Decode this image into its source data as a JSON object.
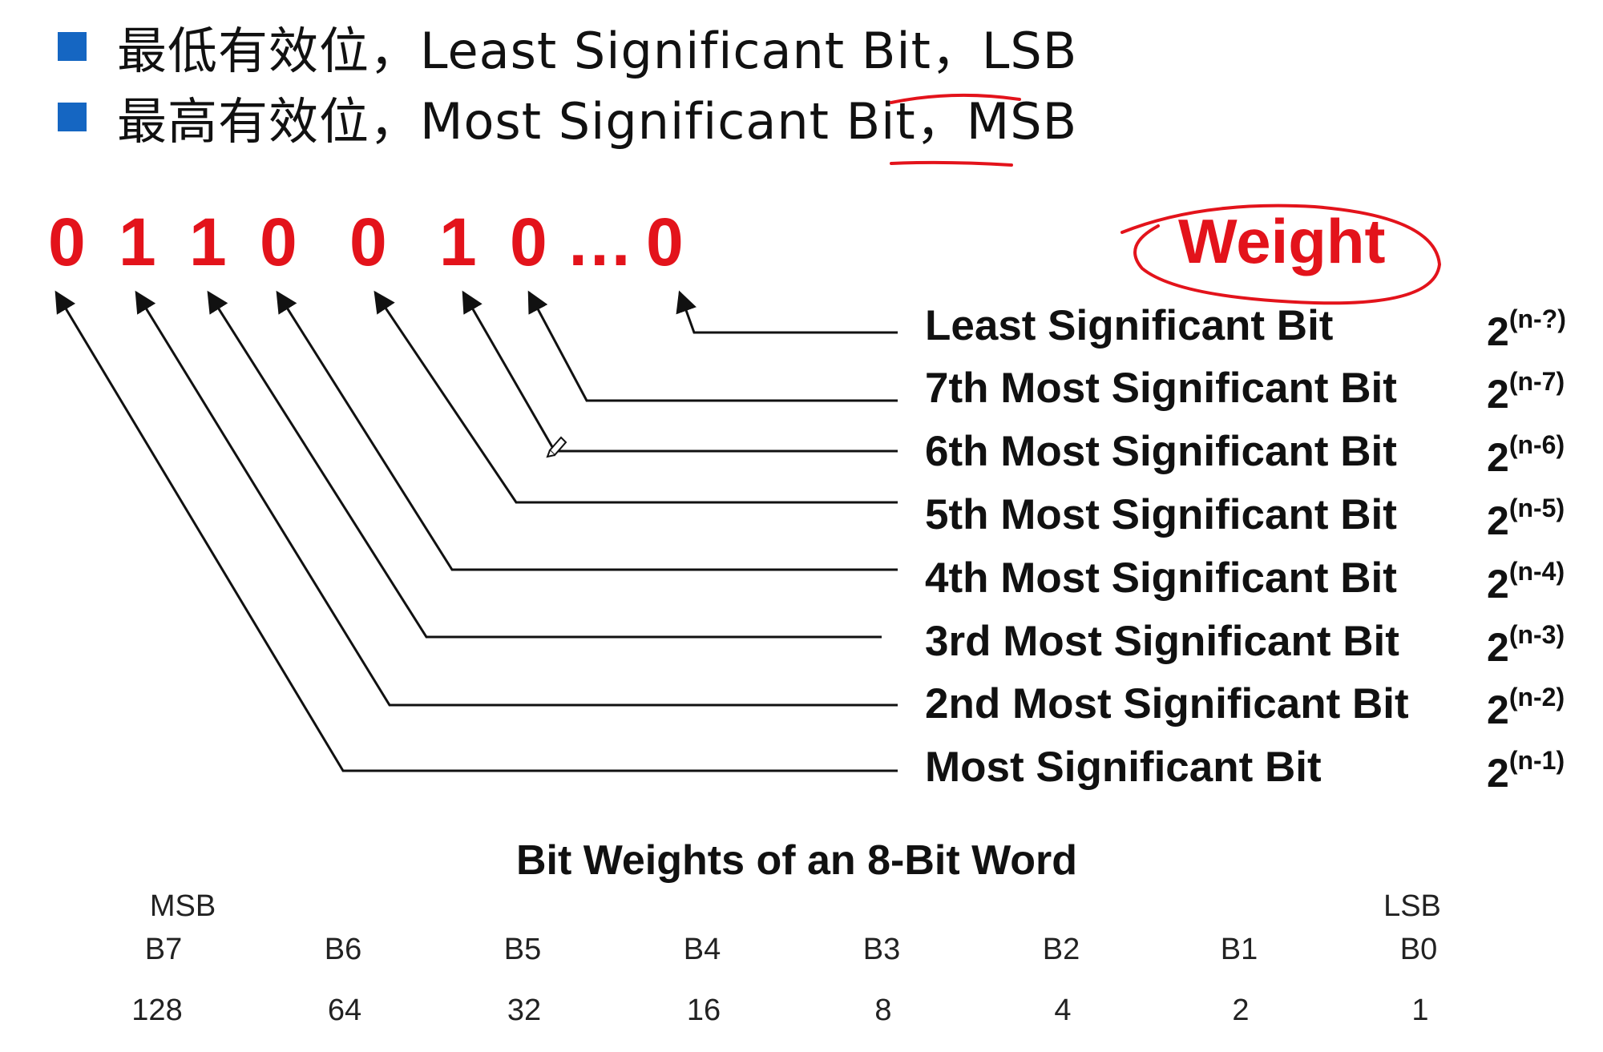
{
  "bullets": [
    {
      "text": "最低有效位，Least Significant Bit，LSB"
    },
    {
      "text": "最高有效位，Most Significant Bit，MSB"
    }
  ],
  "bit_sequence": [
    "0",
    "1",
    "1",
    "0",
    "0",
    "1",
    "0",
    "…",
    "0"
  ],
  "weight_heading": "Weight",
  "bit_labels": [
    {
      "label": "Least Significant Bit",
      "base": "2",
      "exponent": "(n-?)"
    },
    {
      "label": "7th Most Significant Bit",
      "base": "2",
      "exponent": "(n-7)"
    },
    {
      "label": "6th Most Significant Bit",
      "base": "2",
      "exponent": "(n-6)"
    },
    {
      "label": "5th Most Significant Bit",
      "base": "2",
      "exponent": "(n-5)"
    },
    {
      "label": "4th Most Significant Bit",
      "base": "2",
      "exponent": "(n-4)"
    },
    {
      "label": "3rd Most Significant Bit",
      "base": "2",
      "exponent": "(n-3)"
    },
    {
      "label": "2nd Most Significant Bit",
      "base": "2",
      "exponent": "(n-2)"
    },
    {
      "label": "Most Significant Bit",
      "base": "2",
      "exponent": "(n-1)"
    }
  ],
  "table": {
    "title": "Bit Weights of an 8-Bit Word",
    "msb_label": "MSB",
    "lsb_label": "LSB",
    "columns": [
      "B7",
      "B6",
      "B5",
      "B4",
      "B3",
      "B2",
      "B1",
      "B0"
    ],
    "values": [
      "128",
      "64",
      "32",
      "16",
      "8",
      "4",
      "2",
      "1"
    ]
  },
  "colors": {
    "accent_red": "#e3131b",
    "bullet_blue": "#1566c2",
    "text": "#111111"
  }
}
